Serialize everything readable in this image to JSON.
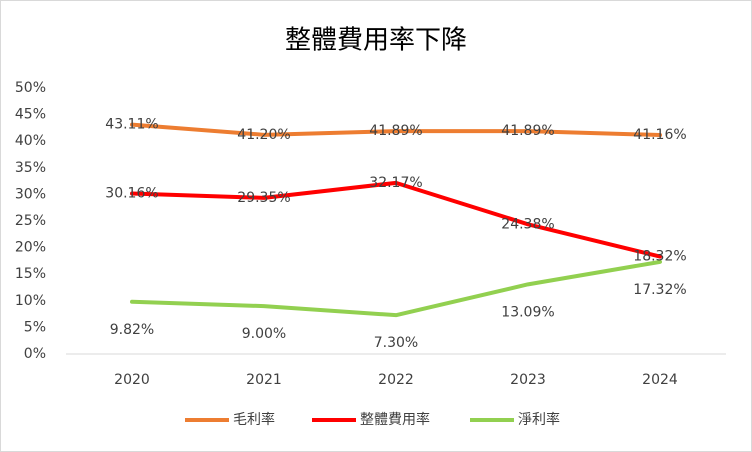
{
  "chart_data": {
    "type": "line",
    "title": "整體費用率下降",
    "categories": [
      "2020",
      "2021",
      "2022",
      "2023",
      "2024"
    ],
    "series": [
      {
        "name": "毛利率",
        "color": "#ed7d31",
        "values": [
          43.11,
          41.2,
          41.89,
          41.89,
          41.16
        ],
        "value_labels": [
          "43.11%",
          "41.20%",
          "41.89%",
          "41.89%",
          "41.16%"
        ]
      },
      {
        "name": "整體費用率",
        "color": "#ff0000",
        "values": [
          30.16,
          29.35,
          32.17,
          24.38,
          18.32
        ],
        "value_labels": [
          "30.16%",
          "29.35%",
          "32.17%",
          "24.38%",
          "18.32%"
        ]
      },
      {
        "name": "淨利率",
        "color": "#92d050",
        "values": [
          9.82,
          9.0,
          7.3,
          13.09,
          17.32
        ],
        "value_labels": [
          "9.82%",
          "9.00%",
          "7.30%",
          "13.09%",
          "17.32%"
        ]
      }
    ],
    "ylim": [
      0,
      50
    ],
    "yticks": [
      {
        "value": 0,
        "label": "0%"
      },
      {
        "value": 5,
        "label": "5%"
      },
      {
        "value": 10,
        "label": "10%"
      },
      {
        "value": 15,
        "label": "15%"
      },
      {
        "value": 20,
        "label": "20%"
      },
      {
        "value": 25,
        "label": "25%"
      },
      {
        "value": 30,
        "label": "30%"
      },
      {
        "value": 35,
        "label": "35%"
      },
      {
        "value": 40,
        "label": "40%"
      },
      {
        "value": 45,
        "label": "45%"
      },
      {
        "value": 50,
        "label": "50%"
      }
    ],
    "grid": false,
    "legend": "bottom"
  }
}
